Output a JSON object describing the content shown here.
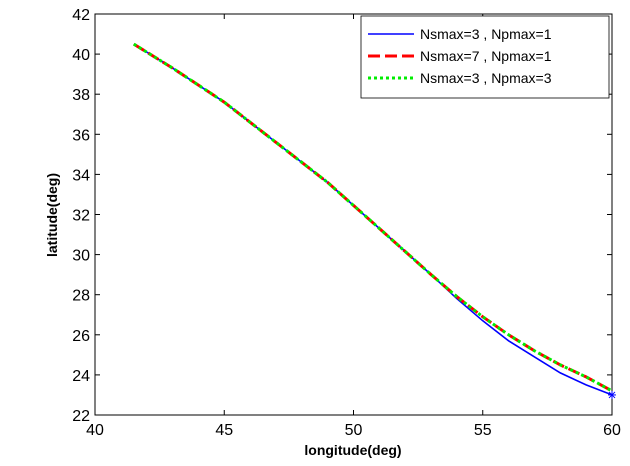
{
  "chart_data": {
    "type": "line",
    "title": "",
    "xlabel": "longitude(deg)",
    "ylabel": "latitude(deg)",
    "xlim": [
      40,
      60
    ],
    "ylim": [
      22,
      42
    ],
    "xticks": [
      40,
      45,
      50,
      55,
      60
    ],
    "yticks": [
      22,
      24,
      26,
      28,
      30,
      32,
      34,
      36,
      38,
      40,
      42
    ],
    "grid": false,
    "legend_position": "top-right",
    "series": [
      {
        "name": "Nsmax=3 , Npmax=1",
        "color": "#0000ff",
        "style": "solid",
        "x": [
          41.5,
          43,
          45,
          47,
          49,
          51,
          53,
          54,
          55,
          56,
          57,
          58,
          59,
          60
        ],
        "y": [
          40.5,
          39.3,
          37.6,
          35.6,
          33.6,
          31.3,
          29.0,
          27.8,
          26.7,
          25.7,
          24.9,
          24.1,
          23.5,
          23.0
        ]
      },
      {
        "name": "Nsmax=7 , Npmax=1",
        "color": "#ff0000",
        "style": "dashed",
        "x": [
          41.5,
          43,
          45,
          47,
          49,
          51,
          53,
          54,
          55,
          56,
          57,
          58,
          59,
          60
        ],
        "y": [
          40.5,
          39.3,
          37.6,
          35.6,
          33.6,
          31.3,
          29.0,
          27.9,
          26.9,
          26.0,
          25.2,
          24.5,
          23.9,
          23.2
        ]
      },
      {
        "name": "Nsmax=3 , Npmax=3",
        "color": "#00ee00",
        "style": "dotted",
        "x": [
          41.5,
          43,
          45,
          47,
          49,
          51,
          53,
          54,
          55,
          56,
          57,
          58,
          59,
          60
        ],
        "y": [
          40.5,
          39.3,
          37.6,
          35.6,
          33.6,
          31.3,
          29.0,
          27.9,
          26.9,
          26.0,
          25.2,
          24.5,
          23.9,
          23.2
        ]
      }
    ]
  }
}
